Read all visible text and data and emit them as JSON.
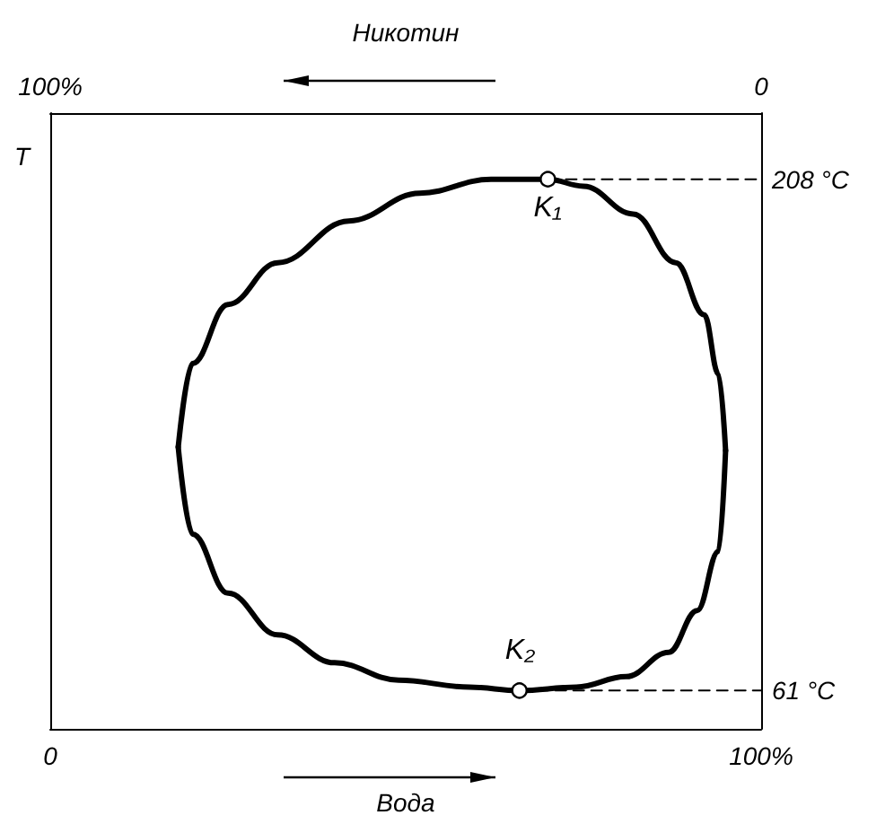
{
  "chart_data": {
    "type": "line",
    "xlabel": "Вода",
    "x2label": "Никотин",
    "ylabel": "T",
    "xlim": [
      0,
      100
    ],
    "xticks": [
      0,
      {
        "value": 100,
        "label": "100%"
      }
    ],
    "x2lim": [
      100,
      0
    ],
    "x2ticks": [
      {
        "value": 100,
        "label": "100%"
      },
      0
    ],
    "ylim": [
      50,
      227
    ],
    "yticks": [
      {
        "value": 61,
        "label": "61 °C"
      },
      {
        "value": 208,
        "label": "208 °C"
      }
    ],
    "marker": "none",
    "series": [
      {
        "color": "#000000",
        "x": [
          18,
          20,
          25,
          32,
          42,
          52,
          62,
          70,
          75,
          82,
          88,
          92,
          94,
          95
        ],
        "values": [
          131,
          155,
          172,
          184,
          196,
          204,
          208,
          208,
          206,
          198,
          184,
          169,
          152,
          130
        ]
      },
      {
        "color": "#000000",
        "x": [
          18,
          20,
          25,
          32,
          40,
          49,
          59,
          66,
          74,
          81,
          87,
          91,
          94,
          95
        ],
        "values": [
          131,
          106,
          89,
          77,
          69,
          64,
          62,
          61,
          62,
          65,
          72,
          84,
          101,
          130
        ]
      },
      {
        "type": "line",
        "color": "#000000",
        "line_style": "dashed",
        "x": [
          70,
          100
        ],
        "values": [
          208,
          208
        ]
      },
      {
        "type": "line",
        "color": "#000000",
        "line_style": "dashed",
        "x": [
          66,
          100
        ],
        "values": [
          61,
          61
        ]
      },
      {
        "type": "scatter",
        "marker": "circle",
        "color": "#ffffff",
        "x": [
          70,
          66
        ],
        "values": [
          208,
          61
        ]
      }
    ],
    "annotations": [
      {
        "text": "K₁",
        "x": 70,
        "y": 208
      },
      {
        "text": "K₂",
        "x": 66,
        "y": 61
      }
    ]
  }
}
